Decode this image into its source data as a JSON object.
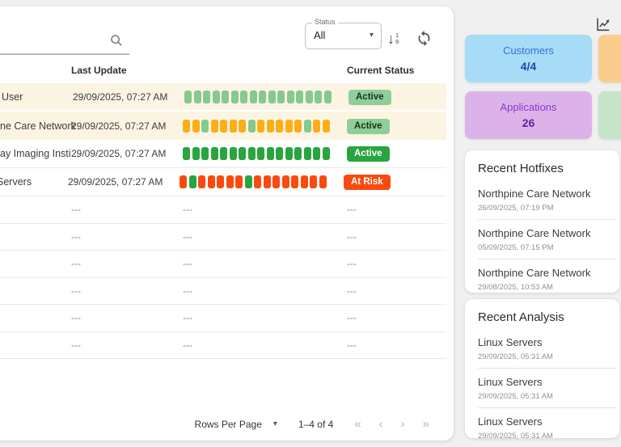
{
  "colors": {
    "square_light_green": "#85c98f",
    "square_amber": "#fbae17",
    "square_dark_green": "#28a53f",
    "square_red": "#fa4a0f",
    "chip_light_green_bg": "#8fcd99",
    "chip_green_bg": "#28a53f",
    "chip_red_bg": "#fa4a0f",
    "row_highlight_bg": "#fcf4e3",
    "card_blue_bg": "#a7dcf7",
    "card_blue_title": "#3a6fd9",
    "card_blue_value": "#2444ad",
    "card_orange_bg": "#fbcc8b",
    "card_purple_bg": "#dcb3e8",
    "card_purple_title": "#8c35cf",
    "card_purple_value": "#641fa5",
    "card_green_bg": "#c6e4c7"
  },
  "toolbar": {
    "search_value": "",
    "status_label": "Status",
    "status_value": "All",
    "select_caret": "▾",
    "sort_arrow": "↓",
    "sort_digits": [
      "1",
      "9"
    ]
  },
  "table": {
    "headers": {
      "last_update": "Last Update",
      "current_status": "Current Status"
    },
    "rows": [
      {
        "name": "User",
        "last_update": "29/09/2025, 07:27 AM",
        "status": "Active",
        "status_style": "light-green",
        "squares": [
          "lg",
          "lg",
          "lg",
          "lg",
          "lg",
          "lg",
          "lg",
          "lg",
          "lg",
          "lg",
          "lg",
          "lg",
          "lg",
          "lg",
          "lg",
          "lg"
        ]
      },
      {
        "name": "ne Care Network",
        "last_update": "29/09/2025, 07:27 AM",
        "status": "Active",
        "status_style": "light-green",
        "squares": [
          "am",
          "am",
          "lg",
          "am",
          "am",
          "am",
          "am",
          "lg",
          "am",
          "am",
          "am",
          "am",
          "am",
          "lg",
          "am",
          "am"
        ]
      },
      {
        "name": "ay Imaging Insti...",
        "last_update": "29/09/2025, 07:27 AM",
        "status": "Active",
        "status_style": "green",
        "squares": [
          "dg",
          "dg",
          "dg",
          "dg",
          "dg",
          "dg",
          "dg",
          "dg",
          "dg",
          "dg",
          "dg",
          "dg",
          "dg",
          "dg",
          "dg",
          "dg"
        ]
      },
      {
        "name": "Servers",
        "last_update": "29/09/2025, 07:27 AM",
        "status": "At Risk",
        "status_style": "red",
        "squares": [
          "rd",
          "dg",
          "rd",
          "rd",
          "rd",
          "rd",
          "rd",
          "dg",
          "rd",
          "rd",
          "rd",
          "rd",
          "rd",
          "rd",
          "rd",
          "rd"
        ]
      }
    ],
    "empty_row_count": 6,
    "empty_cell_text": "---"
  },
  "pagination": {
    "rows_per_page_label": "Rows Per Page",
    "caret": "▾",
    "range_text": "1–4 of 4",
    "first": "«",
    "prev": "‹",
    "next": "›",
    "last": "»"
  },
  "summary_cards": {
    "customers": {
      "title": "Customers",
      "value": "4/4"
    },
    "applications": {
      "title": "Applications",
      "value": "26"
    }
  },
  "recent_hotfixes": {
    "title": "Recent Hotfixes",
    "items": [
      {
        "name": "Northpine Care Network",
        "time": "26/09/2025, 07:19 PM"
      },
      {
        "name": "Northpine Care Network",
        "time": "05/09/2025, 07:15 PM"
      },
      {
        "name": "Northpine Care Network",
        "time": "29/08/2025, 10:53 AM"
      }
    ]
  },
  "recent_analysis": {
    "title": "Recent Analysis",
    "items": [
      {
        "name": "Linux Servers",
        "time": "29/09/2025, 05:31 AM"
      },
      {
        "name": "Linux Servers",
        "time": "29/09/2025, 05:31 AM"
      },
      {
        "name": "Linux Servers",
        "time": "29/09/2025, 05:31 AM"
      }
    ]
  }
}
